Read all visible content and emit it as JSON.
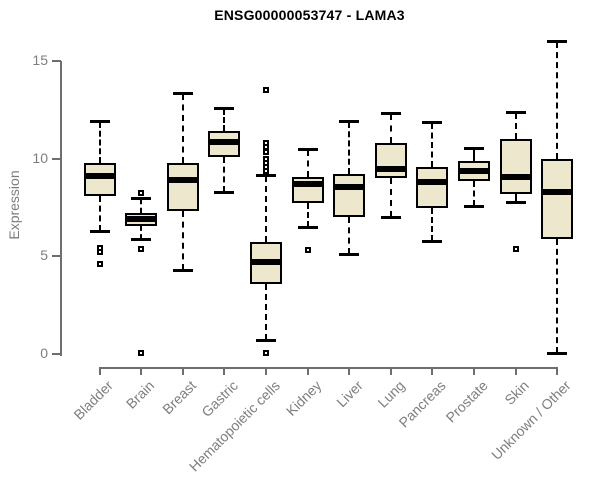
{
  "chart_data": {
    "type": "boxplot",
    "title": "ENSG00000053747 - LAMA3",
    "xlabel": "",
    "ylabel": "Expression",
    "ylim": [
      0,
      15
    ],
    "yticks": [
      0,
      5,
      10,
      15
    ],
    "grid": false,
    "legend": "none",
    "style": {
      "box_fill": "#EDE8CD",
      "box_border": "#000000",
      "median_color": "#000000",
      "whisker_style": "dashed",
      "axis_color": "#6e6e6e",
      "label_color": "#7e7e7e",
      "title_color": "#000000"
    },
    "categories": [
      "Bladder",
      "Brain",
      "Breast",
      "Gastric",
      "Hematopoietic cells",
      "Kidney",
      "Liver",
      "Lung",
      "Pancreas",
      "Prostate",
      "Skin",
      "Unknown / Other"
    ],
    "boxes": [
      {
        "category": "Bladder",
        "whisker_low": 6.3,
        "q1": 8.1,
        "median": 9.1,
        "q3": 9.8,
        "whisker_high": 11.9,
        "outliers": [
          5.45,
          5.2,
          4.6
        ]
      },
      {
        "category": "Brain",
        "whisker_low": 5.9,
        "q1": 6.55,
        "median": 6.9,
        "q3": 7.2,
        "whisker_high": 7.95,
        "outliers": [
          8.25,
          5.4,
          0.05
        ]
      },
      {
        "category": "Breast",
        "whisker_low": 4.3,
        "q1": 7.3,
        "median": 8.9,
        "q3": 9.8,
        "whisker_high": 13.3,
        "outliers": []
      },
      {
        "category": "Gastric",
        "whisker_low": 8.3,
        "q1": 10.1,
        "median": 10.85,
        "q3": 11.4,
        "whisker_high": 12.55,
        "outliers": []
      },
      {
        "category": "Hematopoietic cells",
        "whisker_low": 0.7,
        "q1": 3.6,
        "median": 4.7,
        "q3": 5.75,
        "whisker_high": 9.1,
        "outliers": [
          13.5,
          10.8,
          10.6,
          10.35,
          10.0,
          9.8,
          9.55,
          9.35,
          0.05
        ]
      },
      {
        "category": "Kidney",
        "whisker_low": 6.5,
        "q1": 7.75,
        "median": 8.7,
        "q3": 9.05,
        "whisker_high": 10.45,
        "outliers": [
          5.3
        ]
      },
      {
        "category": "Liver",
        "whisker_low": 5.1,
        "q1": 7.0,
        "median": 8.55,
        "q3": 9.2,
        "whisker_high": 11.9,
        "outliers": []
      },
      {
        "category": "Lung",
        "whisker_low": 7.0,
        "q1": 9.0,
        "median": 9.45,
        "q3": 10.8,
        "whisker_high": 12.3,
        "outliers": []
      },
      {
        "category": "Pancreas",
        "whisker_low": 5.8,
        "q1": 7.5,
        "median": 8.8,
        "q3": 9.6,
        "whisker_high": 11.85,
        "outliers": []
      },
      {
        "category": "Prostate",
        "whisker_low": 7.6,
        "q1": 8.85,
        "median": 9.35,
        "q3": 9.9,
        "whisker_high": 10.5,
        "outliers": []
      },
      {
        "category": "Skin",
        "whisker_low": 7.8,
        "q1": 8.2,
        "median": 9.05,
        "q3": 11.0,
        "whisker_high": 12.35,
        "outliers": [
          5.4
        ]
      },
      {
        "category": "Unknown / Other",
        "whisker_low": 0.05,
        "q1": 5.9,
        "median": 8.3,
        "q3": 10.0,
        "whisker_high": 16.0,
        "outliers": []
      }
    ]
  }
}
